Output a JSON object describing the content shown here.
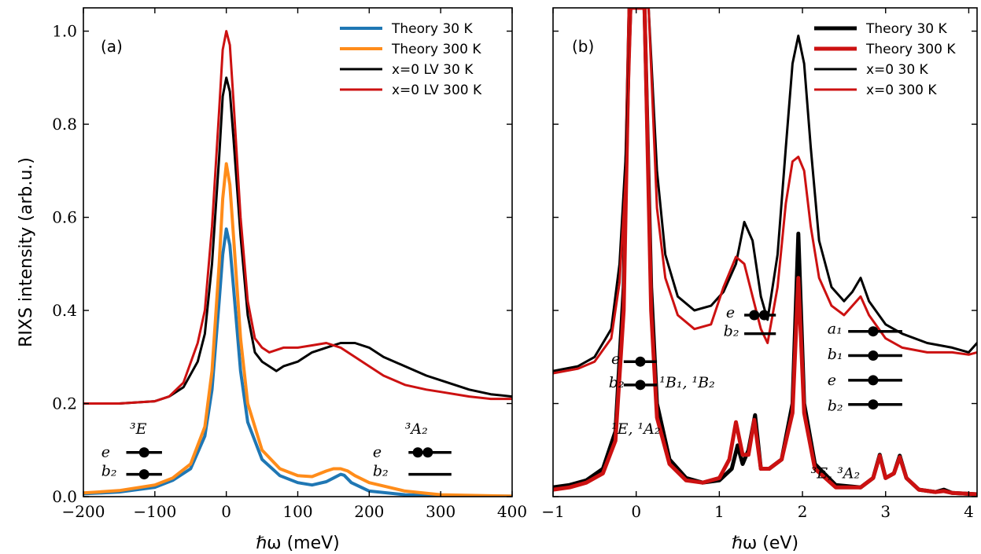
{
  "chart_data": [
    {
      "id": "a",
      "type": "line",
      "panel_label": "(a)",
      "xlabel": "ℏω (meV)",
      "ylabel": "RIXS intensity (arb.u.)",
      "xlim": [
        -200,
        400
      ],
      "ylim": [
        0,
        1.05
      ],
      "xticks": [
        -200,
        -100,
        0,
        100,
        200,
        300,
        400
      ],
      "xtick_labels": [
        "−200",
        "−100",
        "0",
        "100",
        "200",
        "300",
        "400"
      ],
      "yticks": [
        0.0,
        0.2,
        0.4,
        0.6,
        0.8,
        1.0
      ],
      "ytick_labels": [
        "0.0",
        "0.2",
        "0.4",
        "0.6",
        "0.8",
        "1.0"
      ],
      "legend": "top-right",
      "grid": false,
      "series": [
        {
          "name": "Theory 30 K",
          "color": "#1f77b4",
          "width": 4,
          "x": [
            -200,
            -150,
            -100,
            -75,
            -50,
            -30,
            -20,
            -10,
            -5,
            0,
            5,
            10,
            20,
            30,
            50,
            75,
            100,
            120,
            140,
            150,
            160,
            165,
            175,
            200,
            250,
            300,
            400
          ],
          "y": [
            0.006,
            0.01,
            0.02,
            0.035,
            0.06,
            0.13,
            0.23,
            0.42,
            0.52,
            0.575,
            0.54,
            0.45,
            0.27,
            0.16,
            0.08,
            0.045,
            0.03,
            0.025,
            0.032,
            0.04,
            0.048,
            0.046,
            0.03,
            0.012,
            0.004,
            0.002,
            0.001
          ]
        },
        {
          "name": "Theory 300 K",
          "color": "#ff8c1a",
          "width": 4,
          "x": [
            -200,
            -150,
            -100,
            -75,
            -50,
            -30,
            -20,
            -10,
            -5,
            0,
            5,
            10,
            20,
            30,
            50,
            75,
            100,
            120,
            140,
            150,
            160,
            170,
            180,
            200,
            250,
            300,
            400
          ],
          "y": [
            0.008,
            0.013,
            0.025,
            0.04,
            0.07,
            0.15,
            0.27,
            0.5,
            0.64,
            0.715,
            0.67,
            0.56,
            0.34,
            0.2,
            0.1,
            0.06,
            0.045,
            0.043,
            0.055,
            0.06,
            0.06,
            0.055,
            0.045,
            0.03,
            0.012,
            0.004,
            0.001
          ]
        },
        {
          "name": "x=0 LV 30 K",
          "color": "#000000",
          "width": 3,
          "x": [
            -200,
            -150,
            -100,
            -80,
            -60,
            -40,
            -30,
            -20,
            -10,
            -5,
            0,
            5,
            10,
            20,
            30,
            40,
            50,
            60,
            70,
            80,
            100,
            120,
            140,
            160,
            180,
            200,
            220,
            250,
            280,
            300,
            340,
            370,
            400
          ],
          "y": [
            0.2,
            0.2,
            0.205,
            0.215,
            0.235,
            0.29,
            0.35,
            0.5,
            0.73,
            0.86,
            0.9,
            0.87,
            0.77,
            0.56,
            0.39,
            0.31,
            0.29,
            0.28,
            0.27,
            0.28,
            0.29,
            0.31,
            0.32,
            0.33,
            0.33,
            0.32,
            0.3,
            0.28,
            0.26,
            0.25,
            0.23,
            0.22,
            0.215
          ]
        },
        {
          "name": "x=0 LV 300 K",
          "color": "#cc1111",
          "width": 3,
          "x": [
            -200,
            -150,
            -100,
            -80,
            -60,
            -40,
            -30,
            -20,
            -10,
            -5,
            0,
            5,
            10,
            20,
            30,
            40,
            50,
            60,
            70,
            80,
            100,
            120,
            140,
            160,
            180,
            200,
            220,
            250,
            280,
            300,
            340,
            370,
            400
          ],
          "y": [
            0.2,
            0.2,
            0.205,
            0.215,
            0.245,
            0.33,
            0.4,
            0.58,
            0.83,
            0.96,
            1.0,
            0.97,
            0.85,
            0.6,
            0.42,
            0.34,
            0.32,
            0.31,
            0.315,
            0.32,
            0.32,
            0.325,
            0.33,
            0.32,
            0.3,
            0.28,
            0.26,
            0.24,
            0.23,
            0.225,
            0.215,
            0.21,
            0.21
          ]
        }
      ],
      "annotations": [
        {
          "text": "³E",
          "x": -135,
          "y": 0.135
        },
        {
          "text": "³A₂",
          "x": 250,
          "y": 0.135
        },
        {
          "text": "e",
          "x": -175,
          "y": 0.085
        },
        {
          "text": "b₂",
          "x": -175,
          "y": 0.045
        },
        {
          "text": "e",
          "x": 205,
          "y": 0.085
        },
        {
          "text": "b₂",
          "x": 205,
          "y": 0.045
        }
      ]
    },
    {
      "id": "b",
      "type": "line",
      "panel_label": "(b)",
      "xlabel": "ℏω (eV)",
      "ylabel": "",
      "xlim": [
        -1,
        4.1
      ],
      "ylim": [
        0,
        1.05
      ],
      "xticks": [
        -1,
        0,
        1,
        2,
        3,
        4
      ],
      "xtick_labels": [
        "−1",
        "0",
        "1",
        "2",
        "3",
        "4"
      ],
      "yticks": [
        0.0,
        0.2,
        0.4,
        0.6,
        0.8,
        1.0
      ],
      "ytick_labels": [],
      "legend": "top-right",
      "grid": false,
      "series": [
        {
          "name": "Theory 30 K",
          "color": "#000000",
          "width": 5,
          "x": [
            -1.0,
            -0.8,
            -0.6,
            -0.4,
            -0.25,
            -0.15,
            -0.08,
            0.1,
            0.18,
            0.25,
            0.4,
            0.6,
            0.8,
            1.0,
            1.15,
            1.22,
            1.28,
            1.35,
            1.43,
            1.5,
            1.6,
            1.75,
            1.88,
            1.95,
            2.02,
            2.15,
            2.4,
            2.7,
            2.85,
            2.93,
            3.0,
            3.1,
            3.17,
            3.25,
            3.4,
            3.6,
            3.7,
            3.8,
            4.1
          ],
          "y": [
            0.02,
            0.025,
            0.035,
            0.06,
            0.14,
            0.45,
            1.05,
            1.05,
            0.45,
            0.2,
            0.08,
            0.04,
            0.03,
            0.035,
            0.06,
            0.11,
            0.07,
            0.1,
            0.175,
            0.06,
            0.06,
            0.08,
            0.2,
            0.565,
            0.2,
            0.07,
            0.025,
            0.02,
            0.04,
            0.09,
            0.04,
            0.05,
            0.088,
            0.04,
            0.015,
            0.01,
            0.015,
            0.008,
            0.005
          ]
        },
        {
          "name": "Theory 300 K",
          "color": "#cc1111",
          "width": 5,
          "x": [
            -1.0,
            -0.8,
            -0.6,
            -0.4,
            -0.25,
            -0.15,
            -0.08,
            0.1,
            0.18,
            0.25,
            0.4,
            0.6,
            0.8,
            1.0,
            1.12,
            1.2,
            1.28,
            1.35,
            1.42,
            1.5,
            1.6,
            1.75,
            1.88,
            1.95,
            2.02,
            2.15,
            2.4,
            2.7,
            2.85,
            2.93,
            3.0,
            3.1,
            3.17,
            3.25,
            3.4,
            3.6,
            3.7,
            3.8,
            4.1
          ],
          "y": [
            0.015,
            0.02,
            0.03,
            0.05,
            0.12,
            0.4,
            1.05,
            1.05,
            0.4,
            0.17,
            0.07,
            0.035,
            0.03,
            0.04,
            0.08,
            0.16,
            0.09,
            0.09,
            0.165,
            0.06,
            0.06,
            0.08,
            0.18,
            0.47,
            0.18,
            0.06,
            0.02,
            0.02,
            0.04,
            0.088,
            0.04,
            0.05,
            0.085,
            0.04,
            0.015,
            0.01,
            0.012,
            0.008,
            0.005
          ]
        },
        {
          "name": "x=0 30 K",
          "color": "#000000",
          "width": 3,
          "x": [
            -1.0,
            -0.7,
            -0.5,
            -0.3,
            -0.2,
            -0.12,
            -0.06,
            0.15,
            0.25,
            0.35,
            0.5,
            0.7,
            0.9,
            1.05,
            1.2,
            1.3,
            1.4,
            1.5,
            1.58,
            1.7,
            1.8,
            1.88,
            1.95,
            2.02,
            2.1,
            2.2,
            2.35,
            2.5,
            2.6,
            2.7,
            2.8,
            3.0,
            3.2,
            3.5,
            3.8,
            4.0,
            4.1
          ],
          "y": [
            0.27,
            0.28,
            0.3,
            0.36,
            0.5,
            0.75,
            1.05,
            1.05,
            0.7,
            0.52,
            0.43,
            0.4,
            0.41,
            0.44,
            0.5,
            0.59,
            0.55,
            0.43,
            0.38,
            0.52,
            0.75,
            0.93,
            0.99,
            0.93,
            0.75,
            0.55,
            0.45,
            0.42,
            0.44,
            0.47,
            0.42,
            0.37,
            0.35,
            0.33,
            0.32,
            0.31,
            0.33
          ]
        },
        {
          "name": "x=0 300 K",
          "color": "#cc1111",
          "width": 3,
          "x": [
            -1.0,
            -0.7,
            -0.5,
            -0.3,
            -0.2,
            -0.12,
            -0.06,
            0.15,
            0.25,
            0.35,
            0.5,
            0.7,
            0.9,
            1.05,
            1.2,
            1.3,
            1.4,
            1.5,
            1.58,
            1.7,
            1.8,
            1.88,
            1.95,
            2.02,
            2.1,
            2.2,
            2.35,
            2.5,
            2.6,
            2.7,
            2.8,
            3.0,
            3.2,
            3.5,
            3.8,
            4.0,
            4.1
          ],
          "y": [
            0.265,
            0.275,
            0.29,
            0.34,
            0.46,
            0.7,
            1.05,
            1.05,
            0.62,
            0.47,
            0.39,
            0.36,
            0.37,
            0.45,
            0.515,
            0.5,
            0.43,
            0.36,
            0.33,
            0.45,
            0.63,
            0.72,
            0.73,
            0.7,
            0.58,
            0.47,
            0.41,
            0.39,
            0.41,
            0.43,
            0.39,
            0.34,
            0.32,
            0.31,
            0.31,
            0.305,
            0.31
          ]
        }
      ],
      "annotations": [
        {
          "text": "e",
          "x": 1.08,
          "y": 0.385
        },
        {
          "text": "b₂",
          "x": 1.05,
          "y": 0.345
        },
        {
          "text": "e",
          "x": -0.3,
          "y": 0.285
        },
        {
          "text": "b₂",
          "x": -0.33,
          "y": 0.235
        },
        {
          "text": "¹B₁, ¹B₂",
          "x": 0.28,
          "y": 0.235
        },
        {
          "text": "¹E, ¹A₂",
          "x": -0.3,
          "y": 0.135
        },
        {
          "text": "a₁",
          "x": 2.3,
          "y": 0.35
        },
        {
          "text": "b₁",
          "x": 2.3,
          "y": 0.295
        },
        {
          "text": "e",
          "x": 2.3,
          "y": 0.24
        },
        {
          "text": "b₂",
          "x": 2.3,
          "y": 0.185
        },
        {
          "text": "³E, ³A₂",
          "x": 2.1,
          "y": 0.04
        }
      ]
    }
  ]
}
